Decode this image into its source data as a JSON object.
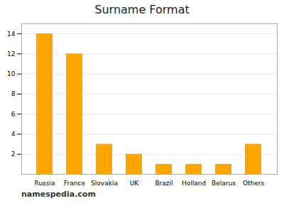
{
  "chart_data": {
    "type": "bar",
    "title": "Surname Format",
    "categories": [
      "Russia",
      "France",
      "Slovakia",
      "UK",
      "Brazil",
      "Holland",
      "Belarus",
      "Others"
    ],
    "values": [
      14,
      12,
      3,
      2,
      1,
      1,
      1,
      3
    ],
    "color": "#FFA500",
    "ylim": [
      0,
      15
    ],
    "yticks": [
      2,
      4,
      6,
      8,
      10,
      12,
      14
    ],
    "grid": true,
    "annotations": [
      "namespedia.com"
    ]
  }
}
